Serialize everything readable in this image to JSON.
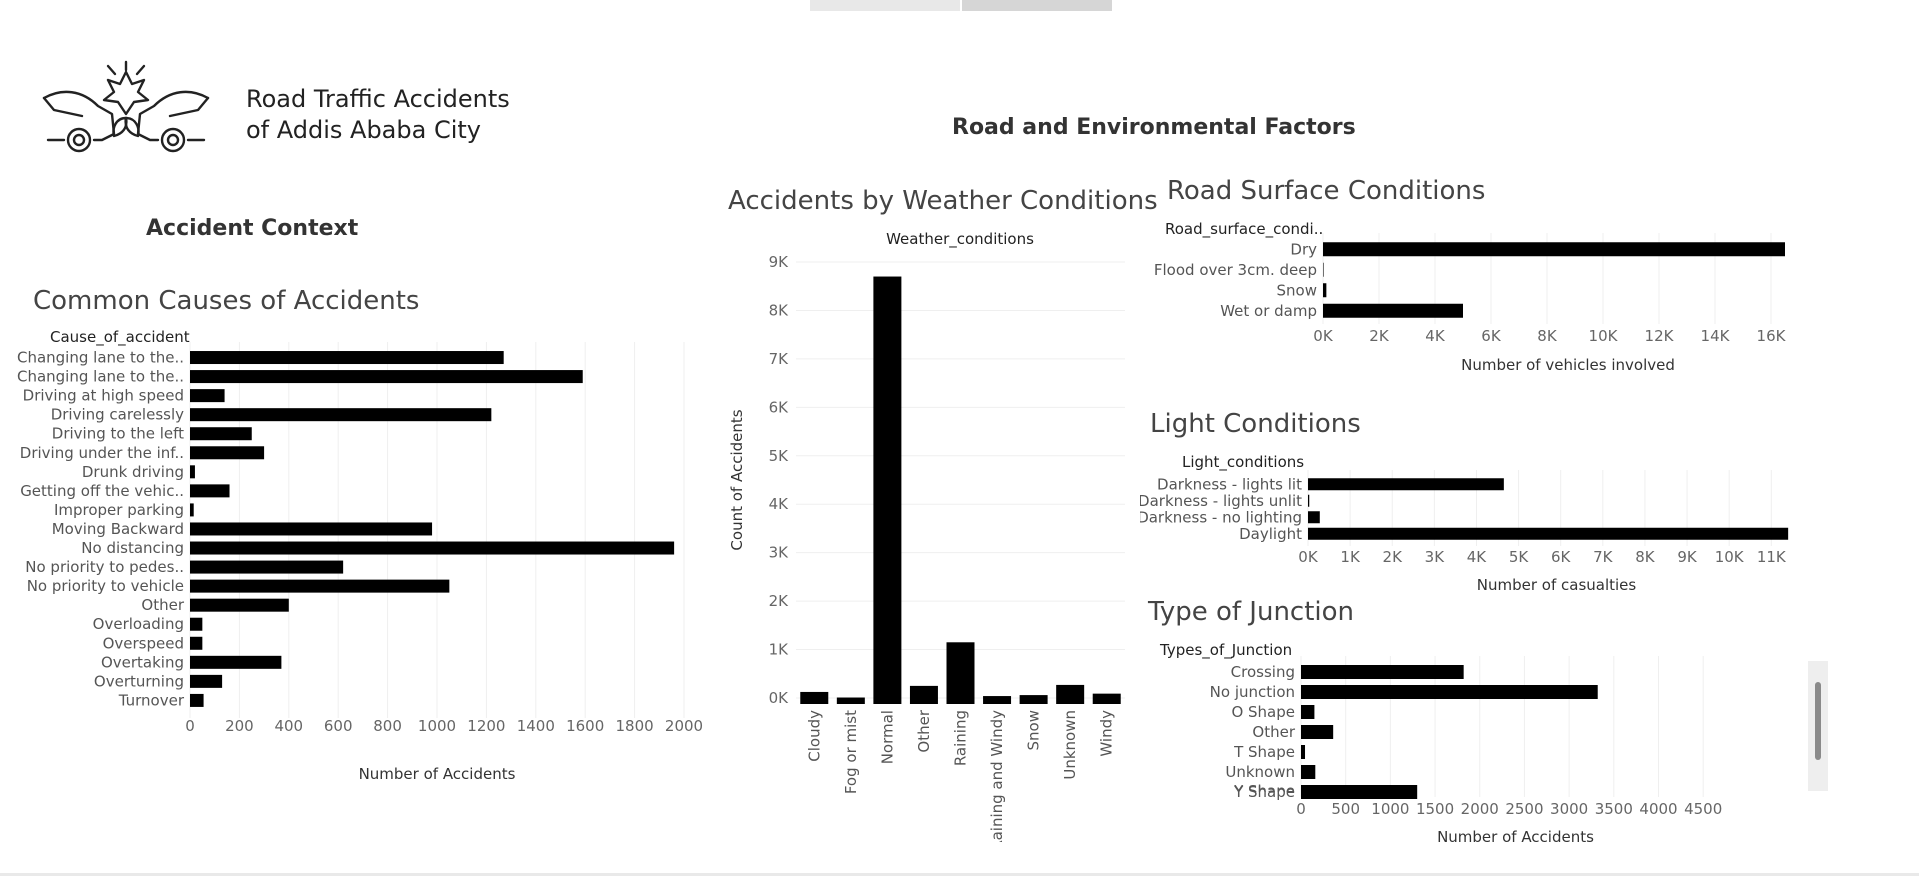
{
  "header": {
    "title_line1": "Road Traffic Accidents",
    "title_line2": "of Addis Ababa City",
    "logo_icon": "car-crash-icon"
  },
  "sections": {
    "accident_context": "Accident Context",
    "road_env": "Road and Environmental Factors"
  },
  "chart_data": [
    {
      "id": "causes",
      "type": "bar",
      "orientation": "horizontal",
      "title": "Common Causes of Accidents",
      "dimension_label": "Cause_of_accident",
      "xlabel": "Number of Accidents",
      "xlim": [
        0,
        2000
      ],
      "ticks": [
        0,
        200,
        400,
        600,
        800,
        1000,
        1200,
        1400,
        1600,
        1800,
        2000
      ],
      "tick_labels": [
        "0",
        "200",
        "400",
        "600",
        "800",
        "1000",
        "1200",
        "1400",
        "1600",
        "1800",
        "2000"
      ],
      "grid": true,
      "categories": [
        "Changing lane to the..",
        "Changing lane to the..",
        "Driving at high speed",
        "Driving carelessly",
        "Driving to the left",
        "Driving under the inf..",
        "Drunk driving",
        "Getting off the vehic..",
        "Improper parking",
        "Moving Backward",
        "No distancing",
        "No priority to pedes..",
        "No priority to vehicle",
        "Other",
        "Overloading",
        "Overspeed",
        "Overtaking",
        "Overturning",
        "Turnover"
      ],
      "values": [
        1270,
        1590,
        140,
        1220,
        250,
        300,
        20,
        160,
        15,
        980,
        1960,
        620,
        1050,
        400,
        50,
        50,
        370,
        130,
        55
      ]
    },
    {
      "id": "weather",
      "type": "bar",
      "orientation": "vertical",
      "title": "Accidents by Weather Conditions",
      "dimension_label": "Weather_conditions",
      "ylabel": "Count of Accidents",
      "ylim": [
        0,
        9000
      ],
      "ticks": [
        0,
        1000,
        2000,
        3000,
        4000,
        5000,
        6000,
        7000,
        8000,
        9000
      ],
      "tick_labels": [
        "0K",
        "1K",
        "2K",
        "3K",
        "4K",
        "5K",
        "6K",
        "7K",
        "8K",
        "9K"
      ],
      "grid": true,
      "categories": [
        "Cloudy",
        "Fog or mist",
        "Normal",
        "Other",
        "Raining",
        "Raining and Windy",
        "Snow",
        "Unknown",
        "Windy"
      ],
      "values": [
        125,
        10,
        8700,
        250,
        1150,
        40,
        60,
        270,
        90
      ]
    },
    {
      "id": "surface",
      "type": "bar",
      "orientation": "horizontal",
      "title": "Road Surface Conditions",
      "dimension_label": "Road_surface_condi..",
      "xlabel": "Number of vehicles involved",
      "xlim": [
        0,
        17500
      ],
      "ticks": [
        0,
        2000,
        4000,
        6000,
        8000,
        10000,
        12000,
        14000,
        16000
      ],
      "tick_labels": [
        "0K",
        "2K",
        "4K",
        "6K",
        "8K",
        "10K",
        "12K",
        "14K",
        "16K"
      ],
      "grid": true,
      "categories": [
        "Dry",
        "Flood over 3cm. deep",
        "Snow",
        "Wet or damp"
      ],
      "values": [
        16500,
        20,
        120,
        5000
      ]
    },
    {
      "id": "light",
      "type": "bar",
      "orientation": "horizontal",
      "title": "Light Conditions",
      "dimension_label": "Light_conditions",
      "xlabel": "Number of casualties",
      "xlim": [
        0,
        11800
      ],
      "ticks": [
        0,
        1000,
        2000,
        3000,
        4000,
        5000,
        6000,
        7000,
        8000,
        9000,
        10000,
        11000
      ],
      "tick_labels": [
        "0K",
        "1K",
        "2K",
        "3K",
        "4K",
        "5K",
        "6K",
        "7K",
        "8K",
        "9K",
        "10K",
        "11K"
      ],
      "grid": true,
      "categories": [
        "Darkness - lights lit",
        "Darkness - lights unlit",
        "Darkness - no lighting",
        "Daylight"
      ],
      "values": [
        4650,
        30,
        280,
        11400
      ]
    },
    {
      "id": "junction",
      "type": "bar",
      "orientation": "horizontal",
      "title": "Type of Junction",
      "dimension_label": "Types_of_Junction",
      "xlabel": "Number of Accidents",
      "xlim": [
        0,
        4800
      ],
      "ticks": [
        0,
        500,
        1000,
        1500,
        2000,
        2500,
        3000,
        3500,
        4000,
        4500
      ],
      "tick_labels": [
        "0",
        "500",
        "1000",
        "1500",
        "2000",
        "2500",
        "3000",
        "3500",
        "4000",
        "4500"
      ],
      "grid": true,
      "categories": [
        "Crossing",
        "No junction",
        "O Shape",
        "Other",
        "T Shape",
        "Unknown",
        "Y Shape"
      ],
      "values": [
        1820,
        3320,
        150,
        360,
        45,
        160,
        1300
      ]
    }
  ]
}
